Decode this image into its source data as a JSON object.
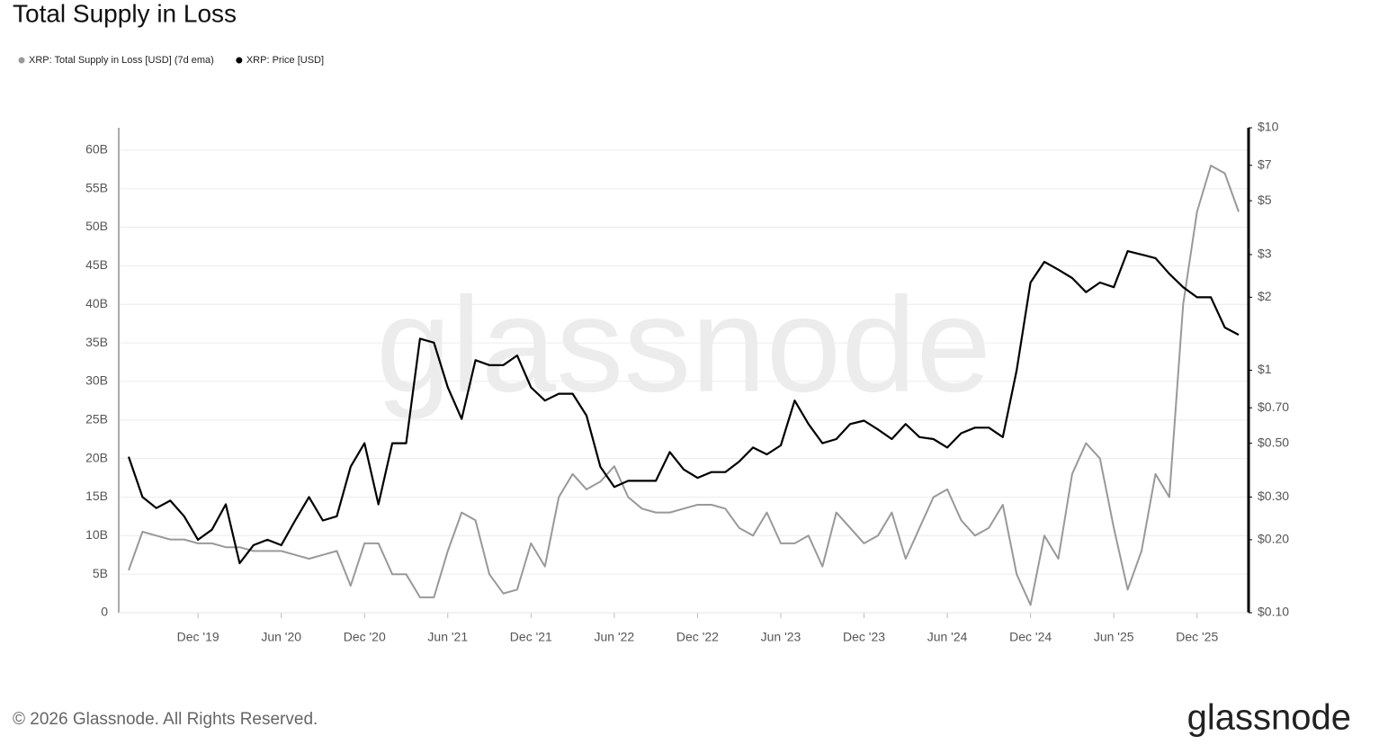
{
  "chart_data": {
    "type": "line",
    "title": "Total Supply in Loss",
    "footer": "© 2026 Glassnode. All Rights Reserved.",
    "brand": "glassnode",
    "watermark": "glassnode",
    "x": [
      "2019-07",
      "2019-08",
      "2019-09",
      "2019-10",
      "2019-11",
      "2019-12",
      "2020-01",
      "2020-02",
      "2020-03",
      "2020-04",
      "2020-05",
      "2020-06",
      "2020-07",
      "2020-08",
      "2020-09",
      "2020-10",
      "2020-11",
      "2020-12",
      "2021-01",
      "2021-02",
      "2021-03",
      "2021-04",
      "2021-05",
      "2021-06",
      "2021-07",
      "2021-08",
      "2021-09",
      "2021-10",
      "2021-11",
      "2021-12",
      "2022-01",
      "2022-02",
      "2022-03",
      "2022-04",
      "2022-05",
      "2022-06",
      "2022-07",
      "2022-08",
      "2022-09",
      "2022-10",
      "2022-11",
      "2022-12",
      "2023-01",
      "2023-02",
      "2023-03",
      "2023-04",
      "2023-05",
      "2023-06",
      "2023-07",
      "2023-08",
      "2023-09",
      "2023-10",
      "2023-11",
      "2023-12",
      "2024-01",
      "2024-02",
      "2024-03",
      "2024-04",
      "2024-05",
      "2024-06",
      "2024-07",
      "2024-08",
      "2024-09",
      "2024-10",
      "2024-11",
      "2024-12",
      "2025-01",
      "2025-02",
      "2025-03",
      "2025-04",
      "2025-05",
      "2025-06",
      "2025-07",
      "2025-08",
      "2025-09",
      "2025-10",
      "2025-11",
      "2025-12",
      "2026-01",
      "2026-02",
      "2026-03"
    ],
    "xticks": [
      {
        "value": "2019-12",
        "label": "Dec '19"
      },
      {
        "value": "2020-06",
        "label": "Jun '20"
      },
      {
        "value": "2020-12",
        "label": "Dec '20"
      },
      {
        "value": "2021-06",
        "label": "Jun '21"
      },
      {
        "value": "2021-12",
        "label": "Dec '21"
      },
      {
        "value": "2022-06",
        "label": "Jun '22"
      },
      {
        "value": "2022-12",
        "label": "Dec '22"
      },
      {
        "value": "2023-06",
        "label": "Jun '23"
      },
      {
        "value": "2023-12",
        "label": "Dec '23"
      },
      {
        "value": "2024-06",
        "label": "Jun '24"
      },
      {
        "value": "2024-12",
        "label": "Dec '24"
      },
      {
        "value": "2025-06",
        "label": "Jun '25"
      },
      {
        "value": "2025-12",
        "label": "Dec '25"
      }
    ],
    "ylim": [
      0,
      62.9
    ],
    "yticks": [
      {
        "value": 0,
        "label": "0"
      },
      {
        "value": 5,
        "label": "5B"
      },
      {
        "value": 10,
        "label": "10B"
      },
      {
        "value": 15,
        "label": "15B"
      },
      {
        "value": 20,
        "label": "20B"
      },
      {
        "value": 25,
        "label": "25B"
      },
      {
        "value": 30,
        "label": "30B"
      },
      {
        "value": 35,
        "label": "35B"
      },
      {
        "value": 40,
        "label": "40B"
      },
      {
        "value": 45,
        "label": "45B"
      },
      {
        "value": 50,
        "label": "50B"
      },
      {
        "value": 55,
        "label": "55B"
      },
      {
        "value": 60,
        "label": "60B"
      }
    ],
    "y2lim": [
      0.1,
      10
    ],
    "y2scale": "log",
    "y2ticks": [
      {
        "value": 10,
        "label": "$10"
      },
      {
        "value": 7,
        "label": "$7"
      },
      {
        "value": 5,
        "label": "$5"
      },
      {
        "value": 3,
        "label": "$3"
      },
      {
        "value": 2,
        "label": "$2"
      },
      {
        "value": 1,
        "label": "$1"
      },
      {
        "value": 0.7,
        "label": "$0.70"
      },
      {
        "value": 0.5,
        "label": "$0.50"
      },
      {
        "value": 0.3,
        "label": "$0.30"
      },
      {
        "value": 0.2,
        "label": "$0.20"
      },
      {
        "value": 0.1,
        "label": "$0.10"
      }
    ],
    "grid": true,
    "series": [
      {
        "name": "XRP: Total Supply in Loss [USD] (7d ema)",
        "color": "#999999",
        "axis": "y",
        "values": [
          5.5,
          10.5,
          10,
          9.5,
          9.5,
          9,
          9,
          8.5,
          8.5,
          8,
          8,
          8,
          7.5,
          7,
          7.5,
          8,
          3.5,
          9,
          9,
          5,
          5,
          2,
          2,
          8,
          13,
          12,
          5,
          2.5,
          3,
          9,
          6,
          15,
          18,
          16,
          17,
          19,
          15,
          13.5,
          13,
          13,
          13.5,
          14,
          14,
          13.5,
          11,
          10,
          13,
          9,
          9,
          10,
          6,
          13,
          11,
          9,
          10,
          13,
          7,
          11,
          15,
          16,
          12,
          10,
          11,
          14,
          5,
          1,
          10,
          7,
          18,
          22,
          20,
          11,
          3,
          8,
          18,
          15,
          40,
          52,
          58,
          57,
          52
        ]
      },
      {
        "name": "XRP: Price [USD]",
        "color": "#000000",
        "axis": "y2",
        "values": [
          0.44,
          0.3,
          0.27,
          0.29,
          0.25,
          0.2,
          0.22,
          0.28,
          0.16,
          0.19,
          0.2,
          0.19,
          0.24,
          0.3,
          0.24,
          0.25,
          0.4,
          0.5,
          0.28,
          0.5,
          0.5,
          1.35,
          1.3,
          0.85,
          0.63,
          1.1,
          1.05,
          1.05,
          1.15,
          0.85,
          0.75,
          0.8,
          0.8,
          0.65,
          0.4,
          0.33,
          0.35,
          0.35,
          0.35,
          0.46,
          0.39,
          0.36,
          0.38,
          0.38,
          0.42,
          0.48,
          0.45,
          0.49,
          0.75,
          0.6,
          0.5,
          0.52,
          0.6,
          0.62,
          0.57,
          0.52,
          0.6,
          0.53,
          0.52,
          0.48,
          0.55,
          0.58,
          0.58,
          0.53,
          1,
          2.3,
          2.8,
          2.6,
          2.4,
          2.1,
          2.3,
          2.2,
          3.1,
          3,
          2.9,
          2.5,
          2.2,
          2,
          2,
          1.5,
          1.4
        ]
      }
    ]
  }
}
